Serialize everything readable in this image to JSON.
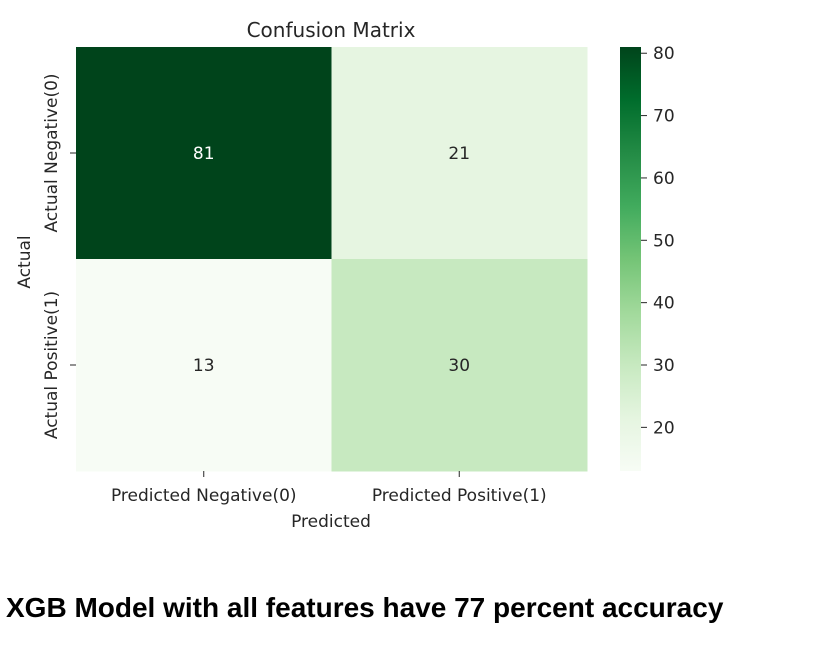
{
  "chart_data": {
    "type": "heatmap",
    "title": "Confusion Matrix",
    "xlabel": "Predicted",
    "ylabel": "Actual",
    "x_categories": [
      "Predicted Negative(0)",
      "Predicted Positive(1)"
    ],
    "y_categories": [
      "Actual Negative(0)",
      "Actual Positive(1)"
    ],
    "values": [
      [
        81,
        21
      ],
      [
        13,
        30
      ]
    ],
    "colormap": "Greens",
    "colorbar": {
      "ticks": [
        20,
        30,
        40,
        50,
        60,
        70,
        80
      ],
      "range": [
        13,
        81
      ]
    },
    "colors": {
      "low": "#f7fcf5",
      "high": "#00441b"
    }
  },
  "caption": "XGB Model with all features have 77 percent accuracy"
}
